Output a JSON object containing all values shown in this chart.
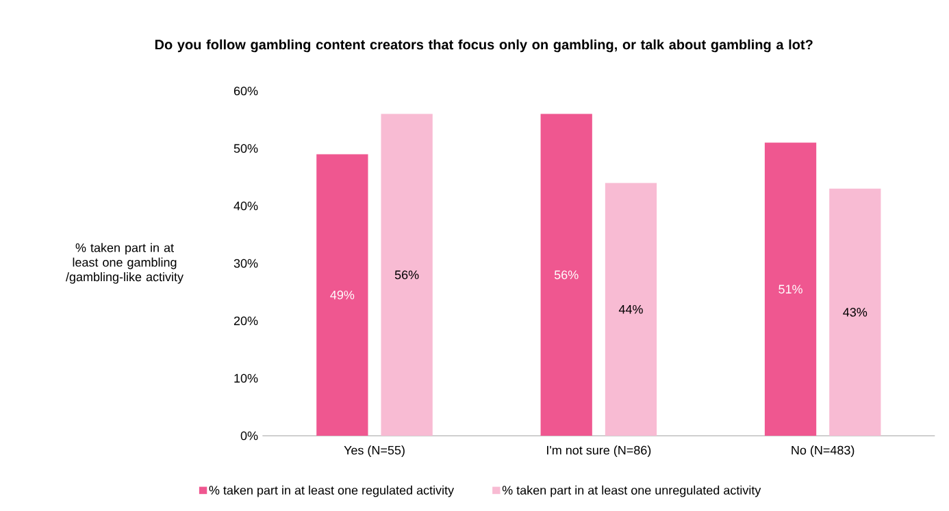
{
  "chart_data": {
    "type": "bar",
    "title": "Do you follow gambling content creators that focus only on gambling, or talk about gambling a lot?",
    "ylabel": "% taken part in at least one gambling /gambling-like activity",
    "categories": [
      "Yes (N=55)",
      "I'm not sure (N=86)",
      "No (N=483)"
    ],
    "series": [
      {
        "name": "% taken part in at least one regulated activity",
        "color": "#ef5790",
        "values": [
          49,
          56,
          51
        ],
        "value_labels": [
          "49%",
          "56%",
          "51%"
        ]
      },
      {
        "name": "% taken part in at least one unregulated activity",
        "color": "#f8bbd3",
        "values": [
          56,
          44,
          43
        ],
        "value_labels": [
          "56%",
          "44%",
          "43%"
        ]
      }
    ],
    "ylim": [
      0,
      60
    ],
    "yticks": [
      {
        "value": 0,
        "label": "0%"
      },
      {
        "value": 10,
        "label": "10%"
      },
      {
        "value": 20,
        "label": "20%"
      },
      {
        "value": 30,
        "label": "30%"
      },
      {
        "value": 40,
        "label": "40%"
      },
      {
        "value": 50,
        "label": "50%"
      },
      {
        "value": 60,
        "label": "60%"
      }
    ],
    "grid": false,
    "legend": "bottom"
  }
}
